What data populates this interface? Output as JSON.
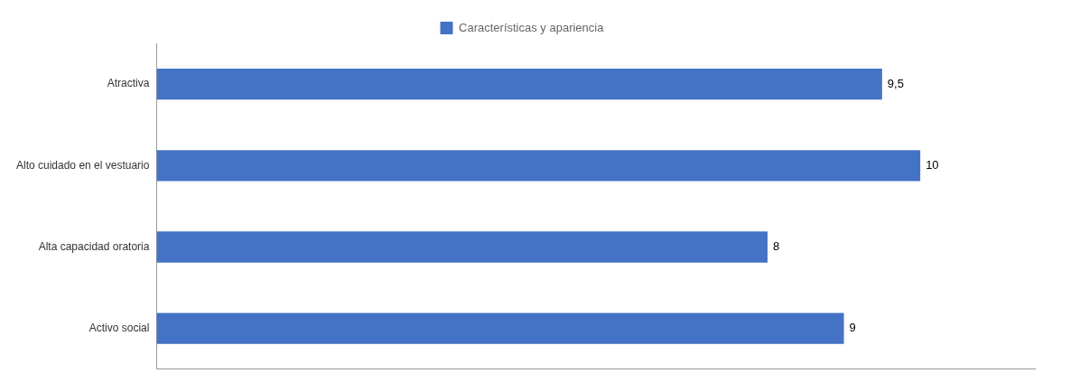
{
  "chart_data": {
    "type": "bar",
    "orientation": "horizontal",
    "categories": [
      "Activo social",
      "Alta capacidad oratoria",
      "Alto cuidado en el vestuario",
      "Atractiva"
    ],
    "series": [
      {
        "name": "Características y apariencia",
        "color": "#4472C4",
        "values": [
          9,
          8,
          10,
          9.5
        ]
      }
    ],
    "value_labels": [
      "9",
      "8",
      "10",
      "9,5"
    ],
    "data_labels": true,
    "xlim": [
      0,
      11.5
    ],
    "tick_labels": "y",
    "grid": false,
    "legend": "top"
  }
}
